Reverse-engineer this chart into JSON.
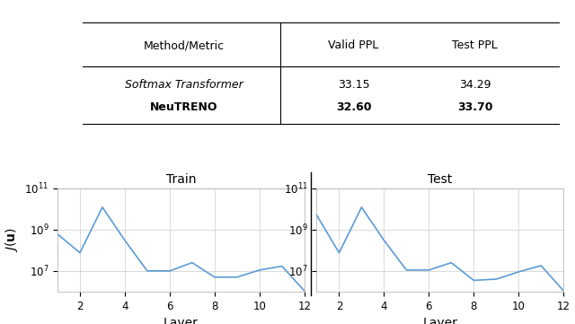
{
  "table": {
    "headers": [
      "Method/Metric",
      "Valid PPL",
      "Test PPL"
    ],
    "rows": [
      [
        "Softmax Transformer",
        "33.15",
        "34.29"
      ],
      [
        "NeuTRENO",
        "32.60",
        "33.70"
      ]
    ]
  },
  "train": {
    "title": "Train",
    "x": [
      1,
      2,
      3,
      4,
      5,
      6,
      7,
      8,
      9,
      10,
      11,
      12
    ],
    "y": [
      600000000.0,
      75000000.0,
      12000000000.0,
      300000000.0,
      10000000.0,
      10000000.0,
      25000000.0,
      5000000.0,
      5000000.0,
      11000000.0,
      17000000.0,
      1100000.0
    ],
    "xlabel": "Layer",
    "ylabel": "$J(\\mathbf{u})$",
    "ylim_log": [
      1000000.0,
      100000000000.0
    ],
    "xticks": [
      2,
      4,
      6,
      8,
      10,
      12
    ]
  },
  "test": {
    "title": "Test",
    "x": [
      1,
      2,
      3,
      4,
      5,
      6,
      7,
      8,
      9,
      10,
      11,
      12
    ],
    "y": [
      5000000000.0,
      75000000.0,
      12000000000.0,
      300000000.0,
      11000000.0,
      11000000.0,
      25000000.0,
      3500000.0,
      4000000.0,
      9000000.0,
      18000000.0,
      1100000.0
    ],
    "xlabel": "Layer",
    "ylim_log": [
      1000000.0,
      100000000000.0
    ],
    "xticks": [
      2,
      4,
      6,
      8,
      10,
      12
    ]
  },
  "background_color": "white",
  "line_color": "#5b9bd5",
  "grid_color": "#cccccc"
}
